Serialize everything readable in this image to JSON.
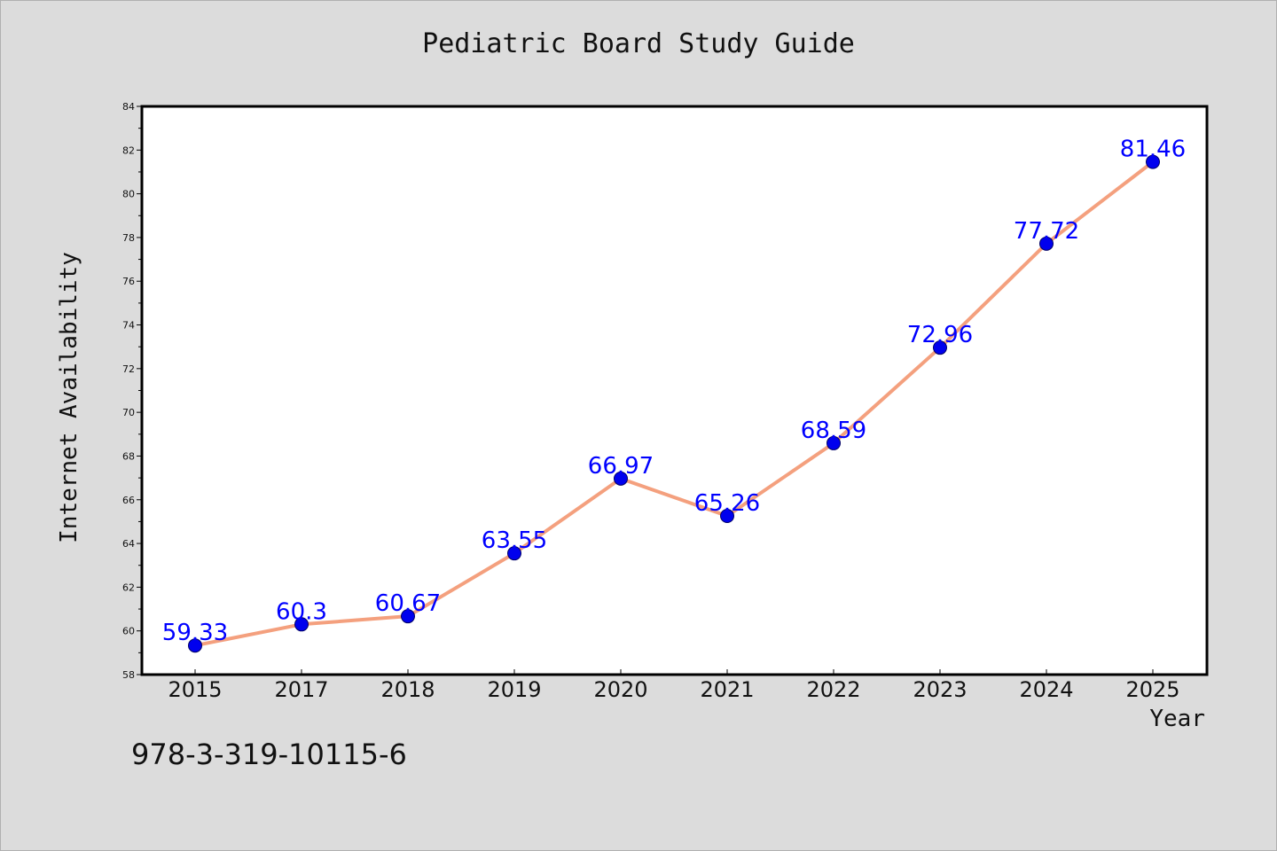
{
  "chart_data": {
    "type": "line",
    "title": "Pediatric Board Study Guide",
    "xlabel": "Year",
    "ylabel": "Internet Availability",
    "categories": [
      "2015",
      "2017",
      "2018",
      "2019",
      "2020",
      "2021",
      "2022",
      "2023",
      "2024",
      "2025"
    ],
    "series": [
      {
        "values": [
          59.33,
          60.3,
          60.67,
          63.55,
          66.97,
          65.26,
          68.59,
          72.96,
          77.72,
          81.46
        ],
        "data_labels": [
          "59.33",
          "60.3",
          "60.67",
          "63.55",
          "66.97",
          "65.26",
          "68.59",
          "72.96",
          "77.72",
          "81.46"
        ],
        "line_color": "#f4a07e",
        "marker_color": "#0000ee"
      }
    ],
    "ylim": [
      58,
      84
    ],
    "yticks": [
      "58",
      "60",
      "62",
      "64",
      "66",
      "68",
      "70",
      "72",
      "74",
      "76",
      "78",
      "80",
      "82",
      "84"
    ],
    "grid": false,
    "label_color": "#0000ff"
  },
  "footer": {
    "isbn": "978-3-319-10115-6"
  }
}
